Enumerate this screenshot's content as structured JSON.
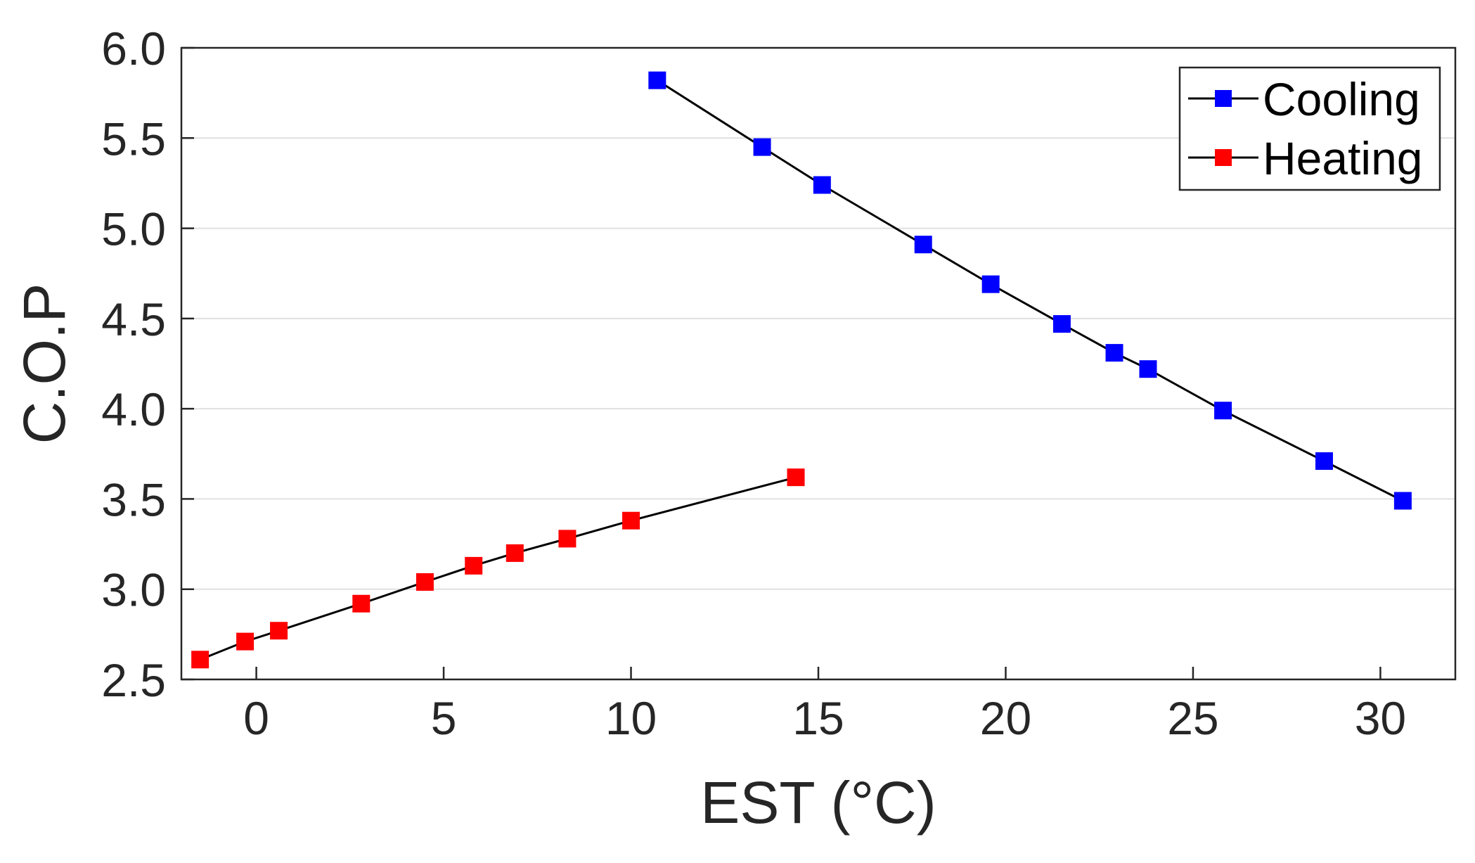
{
  "chart_data": {
    "type": "line",
    "title": "",
    "xlabel": "EST (°C)",
    "ylabel": "C.O.P",
    "xlim": [
      -2,
      32
    ],
    "ylim": [
      2.5,
      6.0
    ],
    "xticks": [
      0,
      5,
      10,
      15,
      20,
      25,
      30
    ],
    "xtick_labels": [
      "0",
      "5",
      "10",
      "15",
      "20",
      "25",
      "30"
    ],
    "yticks": [
      2.5,
      3.0,
      3.5,
      4.0,
      4.5,
      5.0,
      5.5,
      6.0
    ],
    "ytick_labels": [
      "2.5",
      "3.0",
      "3.5",
      "4.0",
      "4.5",
      "5.0",
      "5.5",
      "6.0"
    ],
    "grid": "horizontal",
    "legend_position": "top-right",
    "series": [
      {
        "name": "Cooling",
        "color": "#0000ff",
        "line_color": "#000000",
        "marker": "square",
        "x": [
          10.7,
          13.5,
          15.1,
          17.8,
          19.6,
          21.5,
          22.9,
          23.8,
          25.8,
          28.5,
          30.6
        ],
        "y": [
          5.82,
          5.45,
          5.24,
          4.91,
          4.69,
          4.47,
          4.31,
          4.22,
          3.99,
          3.71,
          3.49
        ]
      },
      {
        "name": "Heating",
        "color": "#ff0000",
        "line_color": "#000000",
        "marker": "square",
        "x": [
          -1.5,
          -0.3,
          0.6,
          2.8,
          4.5,
          5.8,
          6.9,
          8.3,
          10.0,
          14.4
        ],
        "y": [
          2.61,
          2.71,
          2.77,
          2.92,
          3.04,
          3.13,
          3.2,
          3.28,
          3.38,
          3.62
        ]
      }
    ]
  }
}
